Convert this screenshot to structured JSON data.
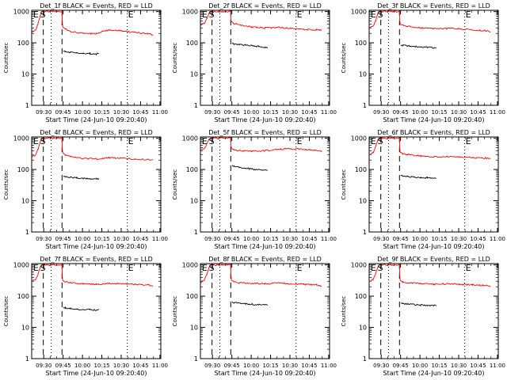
{
  "figure": {
    "y_label": "Counts/sec",
    "x_label": "Start Time (24-Jun-10 09:20:40)",
    "x_ticks": [
      "09:30",
      "09:45",
      "10:00",
      "10:15",
      "10:30",
      "10:45",
      "11:00"
    ],
    "y_ticks": [
      "1",
      "10",
      "100",
      "1000"
    ],
    "marker_labels": {
      "e": "E",
      "s": "S"
    }
  },
  "colors": {
    "events": "#000000",
    "lld": "#ff0000",
    "axes": "#000000",
    "background": "#ffffff"
  },
  "chart_data": [
    {
      "type": "line",
      "title": "Det_1f BLACK = Events, RED = LLD",
      "xlabel": "Start Time (24-Jun-10 09:20:40)",
      "ylabel": "Counts/sec",
      "x_units": "minutes after 09:20:40",
      "y_scale": "log",
      "ylim": [
        1,
        1100
      ],
      "xlim": [
        0,
        100
      ],
      "markers": {
        "e": [
          0.5,
          74
        ],
        "s": [
          9
        ],
        "dashed": [
          9,
          23.5
        ],
        "dotted": [
          15,
          74
        ]
      },
      "series": [
        {
          "name": "LLD",
          "x": [
            0,
            3,
            5,
            6.5,
            7.5,
            8.5,
            23.5,
            23.6,
            24,
            26,
            30,
            40,
            50,
            60,
            70,
            80,
            90,
            94
          ],
          "y": [
            220,
            260,
            420,
            700,
            950,
            1000,
            1000,
            520,
            340,
            280,
            230,
            200,
            195,
            260,
            240,
            215,
            195,
            180
          ]
        },
        {
          "name": "Events",
          "x": [
            24.5,
            26,
            30,
            35,
            40,
            45,
            50,
            52
          ],
          "y": [
            55,
            52,
            50,
            47,
            46,
            45,
            44,
            45
          ]
        }
      ]
    },
    {
      "type": "line",
      "title": "Det_2f BLACK = Events, RED = LLD",
      "xlabel": "Start Time (24-Jun-10 09:20:40)",
      "ylabel": "Counts/sec",
      "x_units": "minutes after 09:20:40",
      "y_scale": "log",
      "ylim": [
        1,
        1100
      ],
      "xlim": [
        0,
        100
      ],
      "markers": {
        "e": [
          0.5,
          74
        ],
        "s": [
          9
        ],
        "dashed": [
          9,
          23.5
        ],
        "dotted": [
          15,
          74
        ]
      },
      "series": [
        {
          "name": "LLD",
          "x": [
            0,
            3,
            5,
            6.5,
            7.5,
            8.5,
            23.5,
            23.6,
            24,
            26,
            30,
            40,
            50,
            60,
            70,
            80,
            90,
            94
          ],
          "y": [
            380,
            420,
            600,
            850,
            1000,
            1000,
            1000,
            560,
            470,
            420,
            380,
            320,
            300,
            310,
            290,
            270,
            260,
            250
          ]
        },
        {
          "name": "Events",
          "x": [
            24.5,
            26,
            30,
            35,
            40,
            45,
            50,
            52
          ],
          "y": [
            95,
            92,
            88,
            85,
            80,
            76,
            72,
            70
          ]
        }
      ]
    },
    {
      "type": "line",
      "title": "Det_3f BLACK = Events, RED = LLD",
      "xlabel": "Start Time (24-Jun-10 09:20:40)",
      "ylabel": "Counts/sec",
      "x_units": "minutes after 09:20:40",
      "y_scale": "log",
      "ylim": [
        1,
        1100
      ],
      "xlim": [
        0,
        100
      ],
      "markers": {
        "e": [
          0.5,
          74
        ],
        "s": [
          9
        ],
        "dashed": [
          9,
          23.5
        ],
        "dotted": [
          15,
          74
        ]
      },
      "series": [
        {
          "name": "LLD",
          "x": [
            0,
            3,
            5,
            6.5,
            7.5,
            8.5,
            23.5,
            23.6,
            24,
            26,
            30,
            40,
            50,
            60,
            70,
            80,
            90,
            94
          ],
          "y": [
            300,
            340,
            500,
            800,
            1000,
            1000,
            1000,
            530,
            420,
            370,
            340,
            300,
            280,
            290,
            280,
            260,
            245,
            230
          ]
        },
        {
          "name": "Events",
          "x": [
            24.5,
            26,
            30,
            35,
            40,
            45,
            50,
            52
          ],
          "y": [
            85,
            82,
            80,
            77,
            74,
            72,
            70,
            69
          ]
        }
      ]
    },
    {
      "type": "line",
      "title": "Det_4f BLACK = Events, RED = LLD",
      "xlabel": "Start Time (24-Jun-10 09:20:40)",
      "ylabel": "Counts/sec",
      "x_units": "minutes after 09:20:40",
      "y_scale": "log",
      "ylim": [
        1,
        1100
      ],
      "xlim": [
        0,
        100
      ],
      "markers": {
        "e": [
          0.5,
          74
        ],
        "s": [
          9
        ],
        "dashed": [
          9,
          23.5
        ],
        "dotted": [
          15,
          74
        ]
      },
      "series": [
        {
          "name": "LLD",
          "x": [
            0,
            3,
            5,
            6.5,
            7.5,
            8.5,
            23.5,
            23.6,
            24,
            26,
            30,
            40,
            50,
            60,
            70,
            80,
            90,
            94
          ],
          "y": [
            250,
            290,
            450,
            750,
            1000,
            1000,
            1000,
            500,
            340,
            290,
            260,
            230,
            215,
            240,
            230,
            215,
            205,
            200
          ]
        },
        {
          "name": "Events",
          "x": [
            24.5,
            26,
            30,
            35,
            40,
            45,
            50,
            52
          ],
          "y": [
            60,
            58,
            56,
            54,
            52,
            51,
            50,
            50
          ]
        }
      ]
    },
    {
      "type": "line",
      "title": "Det_5f BLACK = Events, RED = LLD",
      "xlabel": "Start Time (24-Jun-10 09:20:40)",
      "ylabel": "Counts/sec",
      "x_units": "minutes after 09:20:40",
      "y_scale": "log",
      "ylim": [
        1,
        1100
      ],
      "xlim": [
        0,
        100
      ],
      "markers": {
        "e": [
          0.5,
          74
        ],
        "s": [
          9
        ],
        "dashed": [
          9,
          23.5
        ],
        "dotted": [
          15,
          74
        ]
      },
      "series": [
        {
          "name": "LLD",
          "x": [
            0,
            3,
            5,
            6.5,
            7.5,
            8.5,
            23.5,
            23.6,
            24,
            26,
            30,
            40,
            50,
            60,
            70,
            80,
            90,
            94
          ],
          "y": [
            420,
            460,
            650,
            900,
            1000,
            1000,
            1000,
            600,
            470,
            430,
            400,
            380,
            400,
            440,
            460,
            440,
            410,
            380
          ]
        },
        {
          "name": "Events",
          "x": [
            24.5,
            26,
            30,
            35,
            40,
            45,
            50,
            52
          ],
          "y": [
            130,
            125,
            118,
            110,
            102,
            98,
            95,
            95
          ]
        }
      ]
    },
    {
      "type": "line",
      "title": "Det_6f BLACK = Events, RED = LLD",
      "xlabel": "Start Time (24-Jun-10 09:20:40)",
      "ylabel": "Counts/sec",
      "x_units": "minutes after 09:20:40",
      "y_scale": "log",
      "ylim": [
        1,
        1100
      ],
      "xlim": [
        0,
        100
      ],
      "markers": {
        "e": [
          0.5,
          74
        ],
        "s": [
          9
        ],
        "dashed": [
          9,
          23.5
        ],
        "dotted": [
          15,
          74
        ]
      },
      "series": [
        {
          "name": "LLD",
          "x": [
            0,
            3,
            5,
            6.5,
            7.5,
            8.5,
            23.5,
            23.6,
            24,
            26,
            30,
            40,
            50,
            60,
            70,
            80,
            90,
            94
          ],
          "y": [
            300,
            340,
            520,
            820,
            1000,
            1000,
            1000,
            520,
            360,
            320,
            300,
            270,
            250,
            260,
            250,
            240,
            230,
            220
          ]
        },
        {
          "name": "Events",
          "x": [
            24.5,
            26,
            30,
            35,
            40,
            45,
            50,
            52
          ],
          "y": [
            65,
            62,
            60,
            57,
            55,
            54,
            52,
            52
          ]
        }
      ]
    },
    {
      "type": "line",
      "title": "Det_7f BLACK = Events, RED = LLD",
      "xlabel": "Start Time (24-Jun-10 09:20:40)",
      "ylabel": "Counts/sec",
      "x_units": "minutes after 09:20:40",
      "y_scale": "log",
      "ylim": [
        1,
        1100
      ],
      "xlim": [
        0,
        100
      ],
      "markers": {
        "e": [
          0.5,
          74
        ],
        "s": [
          9
        ],
        "dashed": [
          9,
          23.5
        ],
        "dotted": [
          15,
          74
        ]
      },
      "series": [
        {
          "name": "LLD",
          "x": [
            0,
            3,
            5,
            6.5,
            7.5,
            8.5,
            23.5,
            23.6,
            24,
            26,
            30,
            40,
            50,
            60,
            70,
            80,
            90,
            94
          ],
          "y": [
            300,
            340,
            520,
            820,
            1000,
            1000,
            1000,
            520,
            330,
            290,
            270,
            250,
            240,
            255,
            250,
            240,
            230,
            220
          ]
        },
        {
          "name": "Events",
          "x": [
            24.5,
            26,
            30,
            35,
            40,
            45,
            50,
            52
          ],
          "y": [
            45,
            42,
            40,
            38,
            37,
            37,
            36,
            38
          ]
        }
      ]
    },
    {
      "type": "line",
      "title": "Det_8f BLACK = Events, RED = LLD",
      "xlabel": "Start Time (24-Jun-10 09:20:40)",
      "ylabel": "Counts/sec",
      "x_units": "minutes after 09:20:40",
      "y_scale": "log",
      "ylim": [
        1,
        1100
      ],
      "xlim": [
        0,
        100
      ],
      "markers": {
        "e": [
          0.5,
          74
        ],
        "s": [
          9
        ],
        "dashed": [
          9,
          23.5
        ],
        "dotted": [
          15,
          74
        ]
      },
      "series": [
        {
          "name": "LLD",
          "x": [
            0,
            3,
            5,
            6.5,
            7.5,
            8.5,
            23.5,
            23.6,
            24,
            26,
            30,
            40,
            50,
            60,
            70,
            80,
            90,
            94
          ],
          "y": [
            280,
            320,
            500,
            800,
            1000,
            1000,
            1000,
            500,
            320,
            290,
            270,
            260,
            250,
            260,
            250,
            240,
            230,
            210
          ]
        },
        {
          "name": "Events",
          "x": [
            24.5,
            26,
            30,
            35,
            40,
            45,
            50,
            52
          ],
          "y": [
            65,
            62,
            60,
            57,
            55,
            53,
            52,
            52
          ]
        }
      ]
    },
    {
      "type": "line",
      "title": "Det_9f BLACK = Events, RED = LLD",
      "xlabel": "Start Time (24-Jun-10 09:20:40)",
      "ylabel": "Counts/sec",
      "x_units": "minutes after 09:20:40",
      "y_scale": "log",
      "ylim": [
        1,
        1100
      ],
      "xlim": [
        0,
        100
      ],
      "markers": {
        "e": [
          0.5,
          74
        ],
        "s": [
          9
        ],
        "dashed": [
          9,
          23.5
        ],
        "dotted": [
          15,
          74
        ]
      },
      "series": [
        {
          "name": "LLD",
          "x": [
            0,
            3,
            5,
            6.5,
            7.5,
            8.5,
            23.5,
            23.6,
            24,
            26,
            30,
            40,
            50,
            60,
            70,
            80,
            90,
            94
          ],
          "y": [
            300,
            340,
            520,
            820,
            1000,
            1000,
            1000,
            500,
            330,
            290,
            270,
            250,
            240,
            250,
            240,
            230,
            220,
            200
          ]
        },
        {
          "name": "Events",
          "x": [
            24.5,
            26,
            30,
            35,
            40,
            45,
            50,
            52
          ],
          "y": [
            60,
            58,
            56,
            54,
            52,
            51,
            50,
            50
          ]
        }
      ]
    }
  ]
}
